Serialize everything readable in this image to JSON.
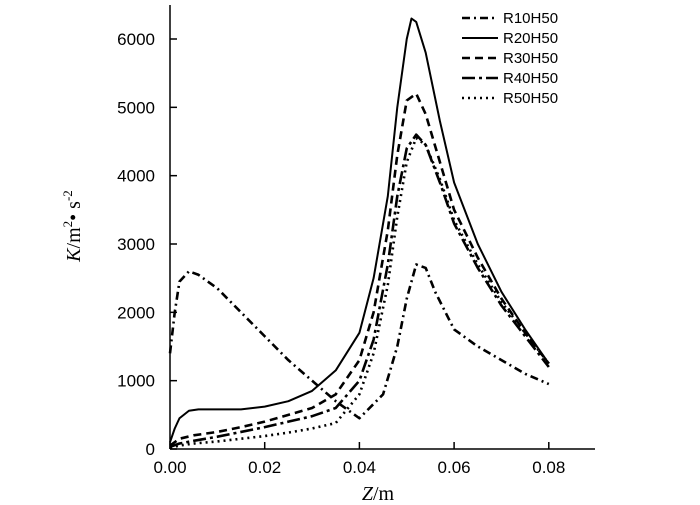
{
  "chart_data": {
    "type": "line",
    "title": "",
    "xlabel": "Z/m",
    "ylabel": "K/m2 · s-2",
    "ylabel_parts": {
      "var": "K",
      "unit1": "/m",
      "sup1": "2",
      "dot": "•",
      "unit2": " s",
      "sup2": "-2"
    },
    "xlabel_parts": {
      "var": "Z",
      "unit": "/m"
    },
    "xlim": [
      0,
      0.08
    ],
    "ylim": [
      0,
      6300
    ],
    "x_ticks": [
      0.0,
      0.02,
      0.04,
      0.06,
      0.08
    ],
    "x_tick_labels": [
      "0.00",
      "0.02",
      "0.04",
      "0.06",
      "0.08"
    ],
    "y_ticks": [
      0,
      1000,
      2000,
      3000,
      4000,
      5000,
      6000
    ],
    "y_tick_labels": [
      "0",
      "1000",
      "2000",
      "3000",
      "4000",
      "5000",
      "6000"
    ],
    "grid": false,
    "legend_position": "top-right",
    "series": [
      {
        "name": "R10H50",
        "dash": "dashdot",
        "x": [
          0.0,
          0.001,
          0.002,
          0.004,
          0.006,
          0.01,
          0.015,
          0.02,
          0.025,
          0.03,
          0.035,
          0.04,
          0.045,
          0.048,
          0.05,
          0.052,
          0.054,
          0.056,
          0.06,
          0.065,
          0.07,
          0.075,
          0.08
        ],
        "y": [
          1400,
          2000,
          2450,
          2600,
          2550,
          2350,
          2000,
          1650,
          1300,
          1000,
          700,
          450,
          800,
          1500,
          2200,
          2700,
          2650,
          2300,
          1750,
          1500,
          1300,
          1100,
          950
        ]
      },
      {
        "name": "R20H50",
        "dash": "solid",
        "x": [
          0.0,
          0.001,
          0.002,
          0.004,
          0.006,
          0.01,
          0.015,
          0.02,
          0.025,
          0.03,
          0.035,
          0.04,
          0.043,
          0.046,
          0.048,
          0.05,
          0.051,
          0.052,
          0.054,
          0.057,
          0.06,
          0.065,
          0.07,
          0.075,
          0.08
        ],
        "y": [
          100,
          300,
          450,
          560,
          580,
          580,
          580,
          620,
          700,
          850,
          1150,
          1700,
          2500,
          3700,
          5000,
          6000,
          6300,
          6250,
          5800,
          4800,
          3900,
          3000,
          2300,
          1750,
          1250
        ]
      },
      {
        "name": "R30H50",
        "dash": "dashed",
        "x": [
          0.0,
          0.002,
          0.005,
          0.01,
          0.015,
          0.02,
          0.025,
          0.03,
          0.035,
          0.04,
          0.043,
          0.046,
          0.048,
          0.05,
          0.052,
          0.054,
          0.057,
          0.06,
          0.065,
          0.07,
          0.075,
          0.08
        ],
        "y": [
          50,
          150,
          200,
          250,
          320,
          400,
          500,
          600,
          800,
          1300,
          2000,
          3200,
          4300,
          5100,
          5200,
          4900,
          4200,
          3500,
          2800,
          2200,
          1700,
          1250
        ]
      },
      {
        "name": "R40H50",
        "dash": "longdashdot",
        "x": [
          0.0,
          0.002,
          0.005,
          0.01,
          0.015,
          0.02,
          0.025,
          0.03,
          0.035,
          0.04,
          0.043,
          0.046,
          0.048,
          0.05,
          0.052,
          0.054,
          0.057,
          0.06,
          0.065,
          0.07,
          0.075,
          0.08
        ],
        "y": [
          30,
          80,
          120,
          180,
          250,
          320,
          400,
          480,
          600,
          1000,
          1600,
          2700,
          3700,
          4400,
          4600,
          4450,
          3900,
          3300,
          2650,
          2100,
          1650,
          1200
        ]
      },
      {
        "name": "R50H50",
        "dash": "dotted",
        "x": [
          0.0,
          0.002,
          0.005,
          0.01,
          0.015,
          0.02,
          0.025,
          0.03,
          0.035,
          0.04,
          0.043,
          0.046,
          0.048,
          0.05,
          0.052,
          0.054,
          0.057,
          0.06,
          0.065,
          0.07,
          0.075,
          0.08
        ],
        "y": [
          20,
          50,
          80,
          110,
          150,
          190,
          240,
          300,
          380,
          800,
          1400,
          2400,
          3400,
          4200,
          4550,
          4450,
          3950,
          3350,
          2700,
          2150,
          1700,
          1250
        ]
      }
    ]
  }
}
